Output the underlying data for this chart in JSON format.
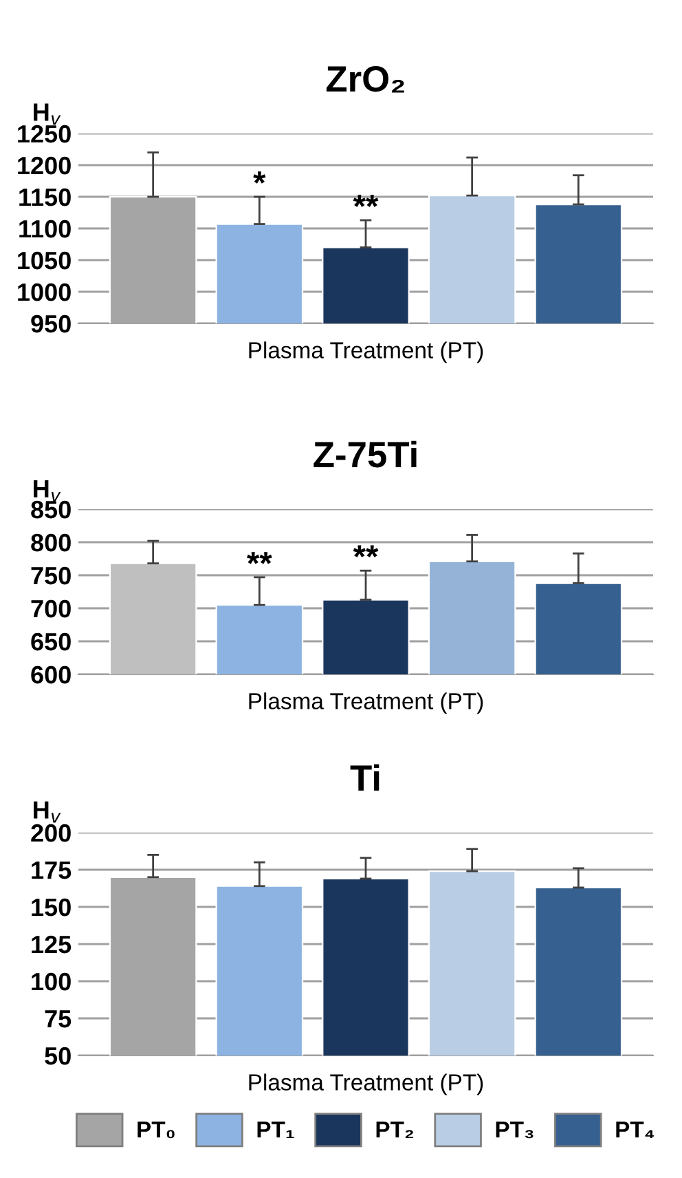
{
  "chart_data": [
    {
      "type": "bar",
      "title": "ZrO₂",
      "ylabel": "H$_{v}$",
      "xlabel": "Plasma Treatment (PT)",
      "categories": [
        null
      ],
      "ylim": [
        950,
        1250
      ],
      "yticks": [
        950,
        1000,
        1050,
        1100,
        1150,
        1200,
        1250
      ],
      "grid": "y",
      "series": [
        {
          "color": "#a5a5a5",
          "values": [
            1150
          ],
          "errors": [
            [
              1150,
              1220
            ]
          ]
        },
        {
          "color": "#8db3e2",
          "values": [
            1107
          ],
          "errors": [
            [
              1107,
              1150
            ]
          ],
          "value_labels": [
            "*"
          ]
        },
        {
          "color": "#1b365d",
          "values": [
            1070
          ],
          "errors": [
            [
              1070,
              1113
            ]
          ],
          "value_labels": [
            "**"
          ]
        },
        {
          "color": "#b9cde5",
          "values": [
            1152
          ],
          "errors": [
            [
              1152,
              1212
            ]
          ]
        },
        {
          "color": "#36608f",
          "values": [
            1138
          ],
          "errors": [
            [
              1138,
              1184
            ]
          ]
        }
      ]
    },
    {
      "type": "bar",
      "title": "Z-75Ti",
      "ylabel": "H$_{v}$",
      "xlabel": "Plasma Treatment (PT)",
      "categories": [
        null
      ],
      "ylim": [
        600,
        850
      ],
      "yticks": [
        600,
        650,
        700,
        750,
        800,
        850
      ],
      "grid": "y",
      "series": [
        {
          "color": "#bfbfbf",
          "values": [
            768
          ],
          "errors": [
            [
              768,
              802
            ]
          ]
        },
        {
          "color": "#8db3e2",
          "values": [
            705
          ],
          "errors": [
            [
              705,
              747
            ]
          ],
          "value_labels": [
            "**"
          ]
        },
        {
          "color": "#1b365d",
          "values": [
            713
          ],
          "errors": [
            [
              713,
              757
            ]
          ],
          "value_labels": [
            "**"
          ]
        },
        {
          "color": "#95b3d7",
          "values": [
            771
          ],
          "errors": [
            [
              771,
              811
            ]
          ]
        },
        {
          "color": "#36608f",
          "values": [
            738
          ],
          "errors": [
            [
              738,
              783
            ]
          ]
        }
      ]
    },
    {
      "type": "bar",
      "title": "Ti",
      "ylabel": "H$_{v}$",
      "xlabel": "Plasma Treatment (PT)",
      "categories": [
        null
      ],
      "ylim": [
        50,
        200
      ],
      "yticks": [
        50,
        75,
        100,
        125,
        150,
        175,
        200
      ],
      "grid": "y",
      "legend": "bottom",
      "series": [
        {
          "name": "PT₀",
          "color": "#a5a5a5",
          "values": [
            170
          ],
          "errors": [
            [
              170,
              185
            ]
          ]
        },
        {
          "name": "PT₁",
          "color": "#8db3e2",
          "values": [
            164
          ],
          "errors": [
            [
              164,
              180
            ]
          ]
        },
        {
          "name": "PT₂",
          "color": "#1b365d",
          "values": [
            169
          ],
          "errors": [
            [
              169,
              183
            ]
          ]
        },
        {
          "name": "PT₃",
          "color": "#b9cde5",
          "values": [
            174
          ],
          "errors": [
            [
              174,
              189
            ]
          ]
        },
        {
          "name": "PT₄",
          "color": "#36608f",
          "values": [
            163
          ],
          "errors": [
            [
              163,
              176
            ]
          ]
        }
      ]
    }
  ]
}
